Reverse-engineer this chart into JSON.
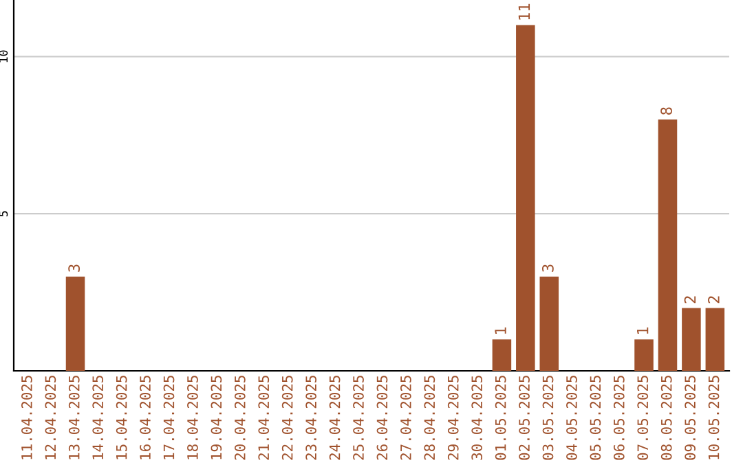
{
  "chart_data": {
    "type": "bar",
    "categories": [
      "11.04.2025",
      "12.04.2025",
      "13.04.2025",
      "14.04.2025",
      "15.04.2025",
      "16.04.2025",
      "17.04.2025",
      "18.04.2025",
      "19.04.2025",
      "20.04.2025",
      "21.04.2025",
      "22.04.2025",
      "23.04.2025",
      "24.04.2025",
      "25.04.2025",
      "26.04.2025",
      "27.04.2025",
      "28.04.2025",
      "29.04.2025",
      "30.04.2025",
      "01.05.2025",
      "02.05.2025",
      "03.05.2025",
      "04.05.2025",
      "05.05.2025",
      "06.05.2025",
      "07.05.2025",
      "08.05.2025",
      "09.05.2025",
      "10.05.2025"
    ],
    "values": [
      0,
      0,
      3,
      0,
      0,
      0,
      0,
      0,
      0,
      0,
      0,
      0,
      0,
      0,
      0,
      0,
      0,
      0,
      0,
      0,
      1,
      11,
      3,
      0,
      0,
      0,
      1,
      8,
      2,
      2
    ],
    "value_labels": [
      null,
      null,
      "3",
      null,
      null,
      null,
      null,
      null,
      null,
      null,
      null,
      null,
      null,
      null,
      null,
      null,
      null,
      null,
      null,
      null,
      "1",
      "11",
      "3",
      null,
      null,
      null,
      "1",
      "8",
      "2",
      "2"
    ],
    "color": "#a0522d",
    "ylim": [
      0,
      11.8
    ],
    "yticks": [
      5,
      10
    ],
    "grid": "y"
  }
}
